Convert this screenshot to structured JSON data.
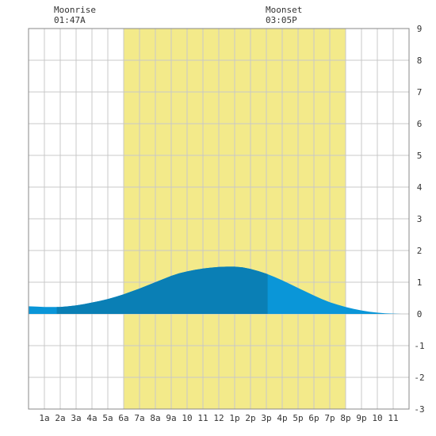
{
  "moonrise": {
    "label": "Moonrise",
    "time": "01:47A"
  },
  "moonset": {
    "label": "Moonset",
    "time": "03:05P"
  },
  "colors": {
    "daylight": "#f3ea8a",
    "grid": "#c8c8c8",
    "axis_frame": "#888888",
    "tide_light": "#0a96d8",
    "tide_dark": "#0a7fb5",
    "text": "#333333"
  },
  "chart_data": {
    "type": "area",
    "xlim": [
      0,
      24
    ],
    "ylim": [
      -3,
      9
    ],
    "x_ticks": [
      {
        "x": 1,
        "label": "1a"
      },
      {
        "x": 2,
        "label": "2a"
      },
      {
        "x": 3,
        "label": "3a"
      },
      {
        "x": 4,
        "label": "4a"
      },
      {
        "x": 5,
        "label": "5a"
      },
      {
        "x": 6,
        "label": "6a"
      },
      {
        "x": 7,
        "label": "7a"
      },
      {
        "x": 8,
        "label": "8a"
      },
      {
        "x": 9,
        "label": "9a"
      },
      {
        "x": 10,
        "label": "10"
      },
      {
        "x": 11,
        "label": "11"
      },
      {
        "x": 12,
        "label": "12"
      },
      {
        "x": 13,
        "label": "1p"
      },
      {
        "x": 14,
        "label": "2p"
      },
      {
        "x": 15,
        "label": "3p"
      },
      {
        "x": 16,
        "label": "4p"
      },
      {
        "x": 17,
        "label": "5p"
      },
      {
        "x": 18,
        "label": "6p"
      },
      {
        "x": 19,
        "label": "7p"
      },
      {
        "x": 20,
        "label": "8p"
      },
      {
        "x": 21,
        "label": "9p"
      },
      {
        "x": 22,
        "label": "10"
      },
      {
        "x": 23,
        "label": "11"
      }
    ],
    "y_ticks": [
      -3,
      -2,
      -1,
      0,
      1,
      2,
      3,
      4,
      5,
      6,
      7,
      8,
      9
    ],
    "daylight": {
      "start": 6,
      "end": 20
    },
    "moon_visible": {
      "start": 1.78,
      "end": 15.08
    },
    "tide": {
      "x": [
        0,
        0.5,
        1,
        1.5,
        2,
        2.5,
        3,
        3.5,
        4,
        4.5,
        5,
        5.5,
        6,
        6.5,
        7,
        7.5,
        8,
        8.5,
        9,
        9.5,
        10,
        10.5,
        11,
        11.5,
        12,
        12.5,
        13,
        13.5,
        14,
        14.5,
        15,
        15.5,
        16,
        16.5,
        17,
        17.5,
        18,
        18.5,
        19,
        19.5,
        20,
        20.5,
        21,
        21.5,
        22,
        22.5,
        23,
        23.5,
        24
      ],
      "y": [
        0.24,
        0.23,
        0.22,
        0.22,
        0.22,
        0.24,
        0.27,
        0.31,
        0.36,
        0.41,
        0.47,
        0.54,
        0.62,
        0.71,
        0.8,
        0.9,
        1.0,
        1.1,
        1.2,
        1.28,
        1.34,
        1.39,
        1.43,
        1.46,
        1.48,
        1.49,
        1.49,
        1.47,
        1.42,
        1.35,
        1.27,
        1.17,
        1.06,
        0.94,
        0.82,
        0.7,
        0.58,
        0.47,
        0.37,
        0.29,
        0.22,
        0.16,
        0.11,
        0.07,
        0.04,
        0.02,
        0.01,
        0.0,
        0.0
      ]
    }
  }
}
